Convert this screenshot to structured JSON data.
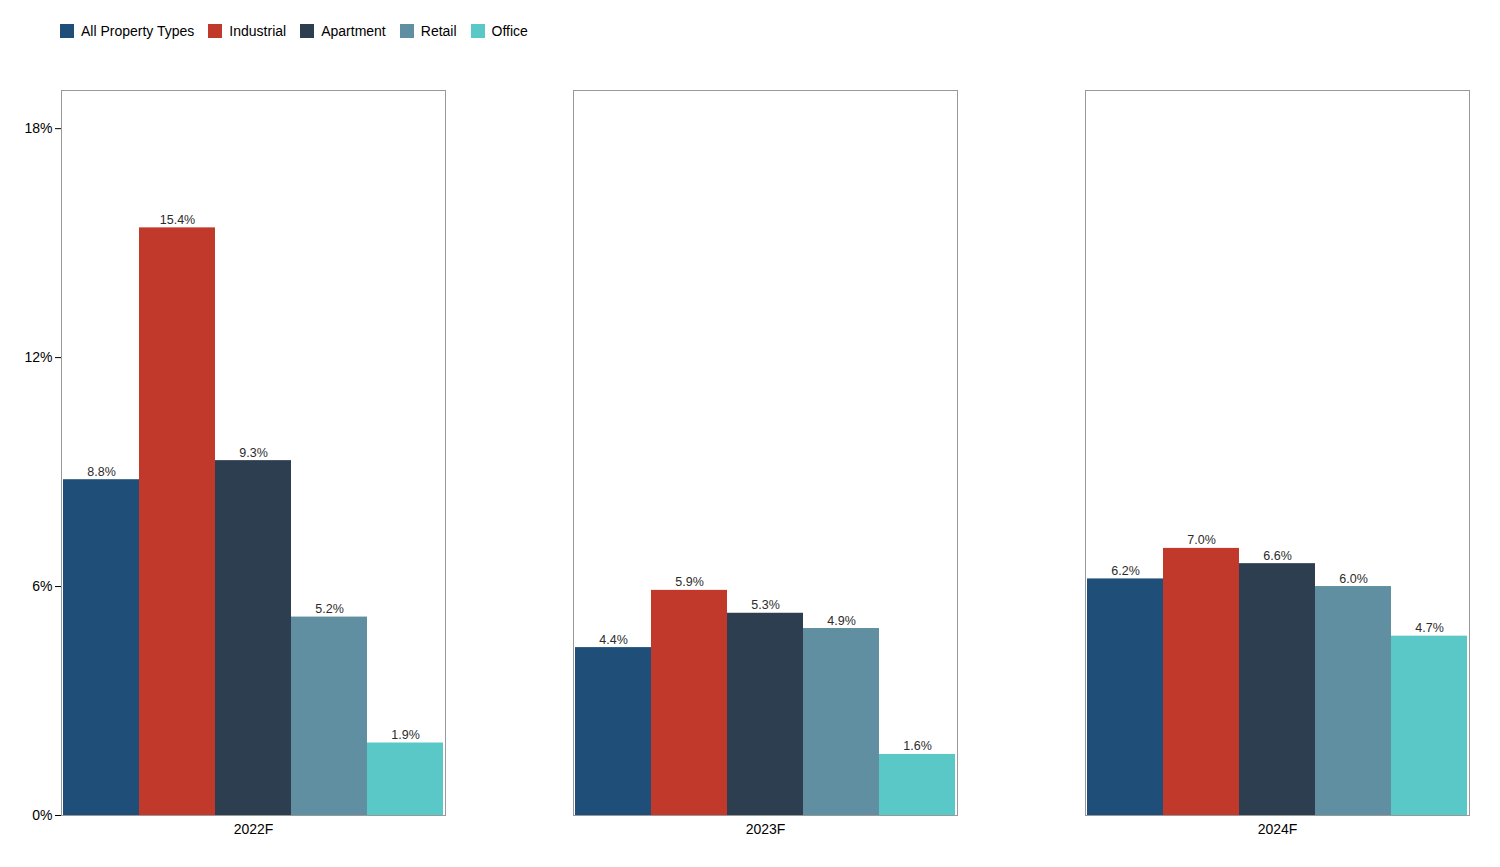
{
  "chart_data": {
    "type": "bar",
    "categories": [
      "2022F",
      "2023F",
      "2024F"
    ],
    "series": [
      {
        "name": "All Property Types",
        "color": "#1f4e79",
        "values": [
          8.8,
          4.4,
          6.2
        ],
        "value_labels": [
          "8.8%",
          "4.4%",
          "6.2%"
        ]
      },
      {
        "name": "Industrial",
        "color": "#c0392b",
        "values": [
          15.4,
          5.9,
          7.0
        ],
        "value_labels": [
          "15.4%",
          "5.9%",
          "7.0%"
        ]
      },
      {
        "name": "Apartment",
        "color": "#2c3e50",
        "values": [
          9.3,
          5.3,
          6.6
        ],
        "value_labels": [
          "9.3%",
          "5.3%",
          "6.6%"
        ]
      },
      {
        "name": "Retail",
        "color": "#5f8fa0",
        "values": [
          5.2,
          4.9,
          6.0
        ],
        "value_labels": [
          "5.2%",
          "4.9%",
          "6.0%"
        ]
      },
      {
        "name": "Office",
        "color": "#5bc8c8",
        "values": [
          1.9,
          1.6,
          4.7
        ],
        "value_labels": [
          "1.9%",
          "1.6%",
          "4.7%"
        ]
      }
    ],
    "ylim": [
      0,
      19
    ],
    "yticks": [
      {
        "value": 0,
        "label": "0%"
      },
      {
        "value": 6,
        "label": "6%"
      },
      {
        "value": 12,
        "label": "12%"
      },
      {
        "value": 18,
        "label": "18%"
      }
    ],
    "data_labels": true,
    "grid": false,
    "legend": "upper left"
  }
}
